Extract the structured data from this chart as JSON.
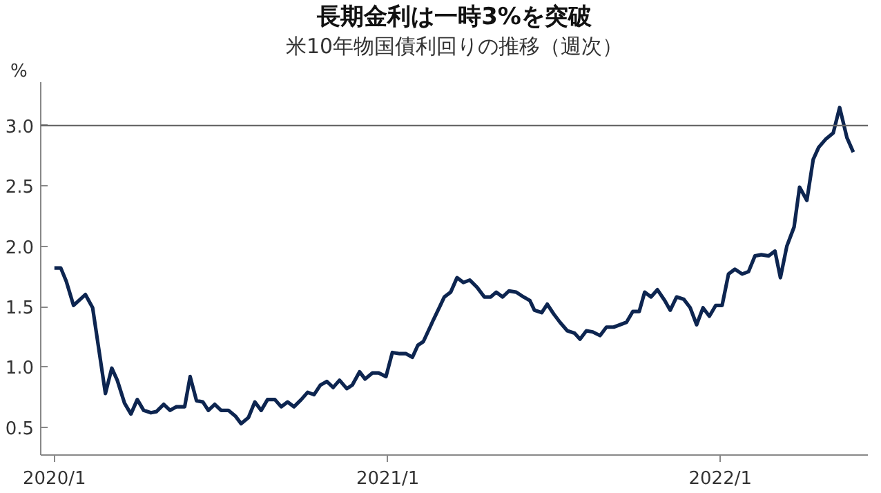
{
  "chart_data": {
    "type": "line",
    "title": "長期金利は一時3%を突破",
    "subtitle": "米10年物国債利回りの推移（週次）",
    "ylabel": "%",
    "x": [
      "2020-01-01",
      "2020-01-08",
      "2020-01-14",
      "2020-01-22",
      "2020-02-04",
      "2020-02-12",
      "2020-02-26",
      "2020-03-04",
      "2020-03-10",
      "2020-03-18",
      "2020-03-25",
      "2020-04-01",
      "2020-04-08",
      "2020-04-16",
      "2020-04-22",
      "2020-04-30",
      "2020-05-07",
      "2020-05-14",
      "2020-05-23",
      "2020-05-29",
      "2020-06-05",
      "2020-06-12",
      "2020-06-18",
      "2020-06-25",
      "2020-07-02",
      "2020-07-10",
      "2020-07-18",
      "2020-07-24",
      "2020-08-01",
      "2020-08-08",
      "2020-08-15",
      "2020-08-22",
      "2020-08-30",
      "2020-09-06",
      "2020-09-13",
      "2020-09-20",
      "2020-09-28",
      "2020-10-05",
      "2020-10-12",
      "2020-10-19",
      "2020-10-26",
      "2020-11-02",
      "2020-11-09",
      "2020-11-17",
      "2020-11-23",
      "2020-12-01",
      "2020-12-07",
      "2020-12-15",
      "2020-12-22",
      "2020-12-30",
      "2021-01-06",
      "2021-01-14",
      "2021-01-21",
      "2021-01-28",
      "2021-02-03",
      "2021-02-09",
      "2021-02-17",
      "2021-02-20",
      "2021-02-27",
      "2021-03-04",
      "2021-03-11",
      "2021-03-18",
      "2021-03-25",
      "2021-04-01",
      "2021-04-09",
      "2021-04-17",
      "2021-04-24",
      "2021-04-30",
      "2021-05-07",
      "2021-05-14",
      "2021-05-22",
      "2021-05-30",
      "2021-06-06",
      "2021-06-11",
      "2021-06-19",
      "2021-06-25",
      "2021-07-02",
      "2021-07-09",
      "2021-07-17",
      "2021-07-25",
      "2021-07-31",
      "2021-08-07",
      "2021-08-14",
      "2021-08-22",
      "2021-08-29",
      "2021-09-06",
      "2021-09-13",
      "2021-09-20",
      "2021-09-27",
      "2021-10-04",
      "2021-10-10",
      "2021-10-17",
      "2021-10-24",
      "2021-11-01",
      "2021-11-07",
      "2021-11-14",
      "2021-11-22",
      "2021-11-29",
      "2021-12-06",
      "2021-12-13",
      "2021-12-20",
      "2021-12-27",
      "2022-01-03",
      "2022-01-10",
      "2022-01-17",
      "2022-01-25",
      "2022-02-01",
      "2022-02-08",
      "2022-02-15",
      "2022-02-23",
      "2022-03-02",
      "2022-03-08",
      "2022-03-15",
      "2022-03-23",
      "2022-03-29",
      "2022-04-06",
      "2022-04-13",
      "2022-04-19",
      "2022-04-27",
      "2022-05-05",
      "2022-05-12",
      "2022-05-20",
      "2022-05-27"
    ],
    "series": [
      {
        "color": "#0d2550",
        "values": [
          1.82,
          1.82,
          1.71,
          1.51,
          1.6,
          1.49,
          0.78,
          0.99,
          0.89,
          0.7,
          0.61,
          0.73,
          0.64,
          0.62,
          0.63,
          0.69,
          0.64,
          0.67,
          0.67,
          0.92,
          0.72,
          0.71,
          0.64,
          0.69,
          0.64,
          0.64,
          0.59,
          0.53,
          0.58,
          0.71,
          0.64,
          0.73,
          0.73,
          0.67,
          0.71,
          0.67,
          0.73,
          0.79,
          0.77,
          0.85,
          0.88,
          0.83,
          0.89,
          0.82,
          0.85,
          0.96,
          0.9,
          0.95,
          0.95,
          0.92,
          1.12,
          1.11,
          1.11,
          1.08,
          1.18,
          1.21,
          1.34,
          1.39,
          1.5,
          1.58,
          1.62,
          1.74,
          1.7,
          1.72,
          1.66,
          1.58,
          1.58,
          1.62,
          1.58,
          1.63,
          1.62,
          1.58,
          1.55,
          1.47,
          1.45,
          1.52,
          1.44,
          1.37,
          1.3,
          1.28,
          1.23,
          1.3,
          1.29,
          1.26,
          1.33,
          1.33,
          1.35,
          1.37,
          1.46,
          1.46,
          1.62,
          1.58,
          1.64,
          1.55,
          1.47,
          1.58,
          1.56,
          1.49,
          1.35,
          1.49,
          1.42,
          1.51,
          1.51,
          1.77,
          1.81,
          1.77,
          1.79,
          1.92,
          1.93,
          1.92,
          1.96,
          1.74,
          2.0,
          2.16,
          2.49,
          2.38,
          2.72,
          2.82,
          2.89,
          2.94,
          3.15,
          2.9,
          2.78
        ]
      }
    ],
    "xlim": [
      "2019-12-17",
      "2022-06-12"
    ],
    "xticks": [
      {
        "value": "2020-01-01",
        "label": "2020/1"
      },
      {
        "value": "2021-01-01",
        "label": "2021/1"
      },
      {
        "value": "2022-01-01",
        "label": "2022/1"
      }
    ],
    "ylim": [
      0.27,
      3.36
    ],
    "yticks": [
      {
        "value": 0.5,
        "label": "0.5"
      },
      {
        "value": 1.0,
        "label": "1.0"
      },
      {
        "value": 1.5,
        "label": "1.5"
      },
      {
        "value": 2.0,
        "label": "2.0"
      },
      {
        "value": 2.5,
        "label": "2.5"
      },
      {
        "value": 3.0,
        "label": "3.0"
      }
    ],
    "ref_lines": [
      {
        "axis": "y",
        "value": 3.0,
        "color": "#666666"
      }
    ],
    "grid": false,
    "marker": "none",
    "line_style": "solid"
  }
}
